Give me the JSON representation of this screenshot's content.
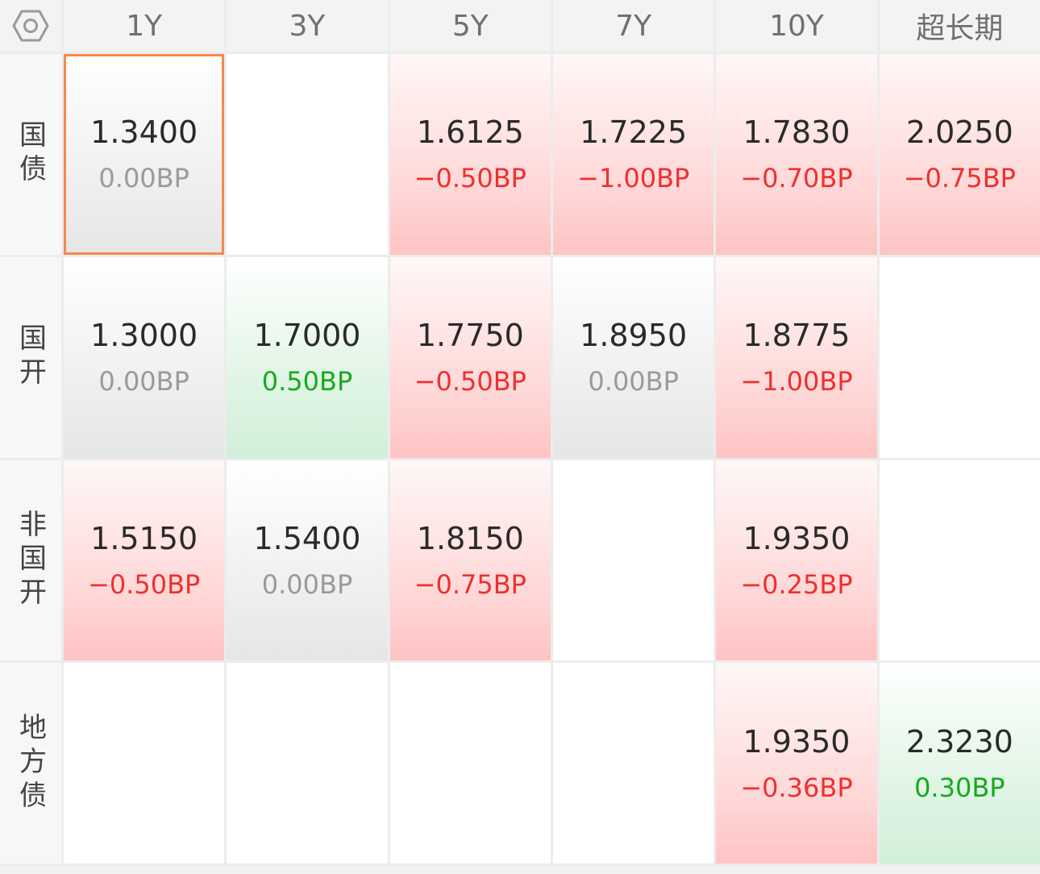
{
  "columns": [
    "1Y",
    "3Y",
    "5Y",
    "7Y",
    "10Y",
    "超长期"
  ],
  "rows": [
    {
      "label": "国债",
      "cells": [
        {
          "value": "1.3400",
          "change": "0.00BP",
          "trend": "flat",
          "selected": true
        },
        null,
        {
          "value": "1.6125",
          "change": "−0.50BP",
          "trend": "down"
        },
        {
          "value": "1.7225",
          "change": "−1.00BP",
          "trend": "down"
        },
        {
          "value": "1.7830",
          "change": "−0.70BP",
          "trend": "down"
        },
        {
          "value": "2.0250",
          "change": "−0.75BP",
          "trend": "down"
        }
      ]
    },
    {
      "label": "国开",
      "cells": [
        {
          "value": "1.3000",
          "change": "0.00BP",
          "trend": "flat"
        },
        {
          "value": "1.7000",
          "change": "0.50BP",
          "trend": "up"
        },
        {
          "value": "1.7750",
          "change": "−0.50BP",
          "trend": "down"
        },
        {
          "value": "1.8950",
          "change": "0.00BP",
          "trend": "flat"
        },
        {
          "value": "1.8775",
          "change": "−1.00BP",
          "trend": "down"
        },
        null
      ]
    },
    {
      "label": "非国开",
      "cells": [
        {
          "value": "1.5150",
          "change": "−0.50BP",
          "trend": "down"
        },
        {
          "value": "1.5400",
          "change": "0.00BP",
          "trend": "flat"
        },
        {
          "value": "1.8150",
          "change": "−0.75BP",
          "trend": "down"
        },
        null,
        {
          "value": "1.9350",
          "change": "−0.25BP",
          "trend": "down"
        },
        null
      ]
    },
    {
      "label": "地方债",
      "cells": [
        null,
        null,
        null,
        null,
        {
          "value": "1.9350",
          "change": "−0.36BP",
          "trend": "down"
        },
        {
          "value": "2.3230",
          "change": "0.30BP",
          "trend": "up"
        }
      ]
    }
  ],
  "colors": {
    "up": "#18a91e",
    "down": "#ef2f2f",
    "flat": "#9a9a9a",
    "selected_border": "#f38b4a"
  },
  "icons": {
    "corner": "settings-hexagon-icon"
  }
}
